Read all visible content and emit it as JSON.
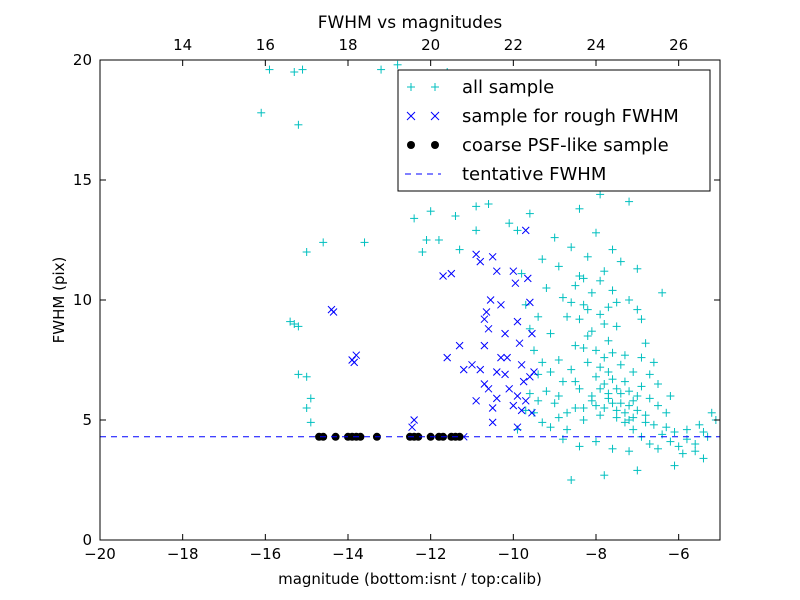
{
  "chart_data": {
    "type": "scatter",
    "title": "FWHM vs magnitudes",
    "xlabel": "magnitude (bottom:isnt / top:calib)",
    "ylabel": "FWHM (pix)",
    "xlim": [
      -20,
      -5
    ],
    "ylim": [
      0,
      20
    ],
    "x_ticks": [
      -20,
      -18,
      -16,
      -14,
      -12,
      -10,
      -8,
      -6
    ],
    "x_tick_labels": [
      "−20",
      "−18",
      "−16",
      "−14",
      "−12",
      "−10",
      "−8",
      "−6"
    ],
    "y_ticks": [
      0,
      5,
      10,
      15,
      20
    ],
    "y_tick_labels": [
      "0",
      "5",
      "10",
      "15",
      "20"
    ],
    "top_axis": {
      "label_note": "calib magnitude = isnt magnitude + 32.0",
      "offset": 32.0,
      "ticks": [
        14,
        16,
        18,
        20,
        22,
        24,
        26
      ],
      "tick_labels": [
        "14",
        "16",
        "18",
        "20",
        "22",
        "24",
        "26"
      ]
    },
    "grid": false,
    "legend_position": "top-right",
    "colors": {
      "all": "#00bfbf",
      "rough": "#0000ff",
      "coarse": "#000000",
      "tentative": "#0000ff"
    },
    "tentative_fwhm": 4.3,
    "series": [
      {
        "name": "all sample",
        "marker": "plus",
        "points": [
          [
            -16.1,
            17.8
          ],
          [
            -15.2,
            17.3
          ],
          [
            -15.9,
            19.6
          ],
          [
            -15.3,
            19.5
          ],
          [
            -15.1,
            19.6
          ],
          [
            -15.0,
            12.0
          ],
          [
            -14.6,
            12.4
          ],
          [
            -15.4,
            9.1
          ],
          [
            -15.3,
            9.0
          ],
          [
            -15.2,
            8.9
          ],
          [
            -15.2,
            6.9
          ],
          [
            -15.0,
            6.8
          ],
          [
            -14.9,
            5.9
          ],
          [
            -15.0,
            5.5
          ],
          [
            -14.9,
            4.9
          ],
          [
            -13.6,
            12.4
          ],
          [
            -12.4,
            13.4
          ],
          [
            -12.0,
            13.7
          ],
          [
            -12.2,
            12.0
          ],
          [
            -11.8,
            12.5
          ],
          [
            -11.4,
            13.5
          ],
          [
            -10.9,
            13.9
          ],
          [
            -10.6,
            14.0
          ],
          [
            -9.9,
            16.0
          ],
          [
            -9.5,
            15.4
          ],
          [
            -9.2,
            15.7
          ],
          [
            -8.6,
            16.4
          ],
          [
            -8.8,
            17.0
          ],
          [
            -7.6,
            16.1
          ],
          [
            -7.4,
            15.3
          ],
          [
            -7.9,
            14.4
          ],
          [
            -7.2,
            14.1
          ],
          [
            -8.4,
            13.8
          ],
          [
            -9.6,
            13.6
          ],
          [
            -9.9,
            12.9
          ],
          [
            -10.1,
            13.2
          ],
          [
            -10.9,
            12.9
          ],
          [
            -11.3,
            12.1
          ],
          [
            -12.1,
            12.5
          ],
          [
            -13.2,
            19.6
          ],
          [
            -12.8,
            19.8
          ],
          [
            -11.6,
            19.5
          ],
          [
            -10.3,
            19.1
          ],
          [
            -10.6,
            18.2
          ],
          [
            -8.6,
            2.5
          ],
          [
            -7.8,
            2.7
          ],
          [
            -7.0,
            2.9
          ],
          [
            -6.1,
            3.1
          ],
          [
            -5.4,
            3.4
          ],
          [
            -6.4,
            10.3
          ],
          [
            -7.0,
            11.3
          ],
          [
            -7.6,
            12.1
          ],
          [
            -6.9,
            9.2
          ],
          [
            -5.2,
            5.3
          ],
          [
            -5.4,
            4.5
          ],
          [
            -6.5,
            6.5
          ],
          [
            -6.3,
            5.3
          ],
          [
            -6.8,
            4.9
          ],
          [
            -5.8,
            4.6
          ],
          [
            -5.6,
            3.7
          ],
          [
            -9.8,
            11.1
          ],
          [
            -9.7,
            9.8
          ],
          [
            -9.6,
            8.8
          ],
          [
            -9.5,
            7.9
          ],
          [
            -9.4,
            9.3
          ],
          [
            -9.3,
            11.7
          ],
          [
            -9.2,
            10.5
          ],
          [
            -9.0,
            12.6
          ],
          [
            -8.9,
            11.4
          ],
          [
            -8.8,
            10.1
          ],
          [
            -8.6,
            12.2
          ],
          [
            -8.4,
            11.0
          ],
          [
            -8.2,
            11.8
          ],
          [
            -8.0,
            12.8
          ],
          [
            -7.8,
            11.2
          ],
          [
            -7.6,
            10.4
          ],
          [
            -7.4,
            11.6
          ],
          [
            -7.2,
            10.0
          ],
          [
            -7.0,
            9.6
          ],
          [
            -6.8,
            8.2
          ],
          [
            -6.6,
            7.4
          ],
          [
            -9.1,
            8.6
          ],
          [
            -8.9,
            7.5
          ],
          [
            -8.7,
            9.3
          ],
          [
            -8.5,
            8.1
          ],
          [
            -8.3,
            9.8
          ],
          [
            -8.1,
            8.7
          ],
          [
            -7.9,
            9.4
          ],
          [
            -7.7,
            8.3
          ],
          [
            -7.5,
            8.9
          ],
          [
            -7.3,
            7.7
          ],
          [
            -7.1,
            7.0
          ],
          [
            -6.9,
            6.4
          ],
          [
            -6.7,
            5.9
          ],
          [
            -9.4,
            6.9
          ],
          [
            -9.2,
            6.2
          ],
          [
            -9.0,
            5.7
          ],
          [
            -8.8,
            6.6
          ],
          [
            -8.6,
            7.1
          ],
          [
            -8.4,
            6.3
          ],
          [
            -8.2,
            7.4
          ],
          [
            -8.0,
            6.8
          ],
          [
            -7.8,
            7.6
          ],
          [
            -7.6,
            6.7
          ],
          [
            -7.4,
            6.1
          ],
          [
            -7.2,
            5.6
          ],
          [
            -7.0,
            6.0
          ],
          [
            -6.8,
            5.2
          ],
          [
            -6.6,
            4.8
          ],
          [
            -6.4,
            4.4
          ],
          [
            -6.2,
            4.1
          ],
          [
            -6.0,
            3.9
          ],
          [
            -5.8,
            4.2
          ],
          [
            -5.6,
            4.0
          ],
          [
            -9.5,
            5.3
          ],
          [
            -9.3,
            4.9
          ],
          [
            -9.1,
            4.7
          ],
          [
            -8.9,
            5.1
          ],
          [
            -8.7,
            4.6
          ],
          [
            -8.5,
            5.5
          ],
          [
            -8.3,
            5.0
          ],
          [
            -8.1,
            5.8
          ],
          [
            -7.9,
            5.2
          ],
          [
            -7.7,
            5.9
          ],
          [
            -7.5,
            5.4
          ],
          [
            -7.3,
            4.9
          ],
          [
            -7.1,
            4.6
          ],
          [
            -6.9,
            4.3
          ],
          [
            -6.7,
            4.0
          ],
          [
            -6.5,
            3.8
          ],
          [
            -8.8,
            4.2
          ],
          [
            -8.4,
            3.9
          ],
          [
            -8.0,
            4.1
          ],
          [
            -7.6,
            3.8
          ],
          [
            -7.2,
            3.7
          ],
          [
            -8.3,
            8.0
          ],
          [
            -8.2,
            8.5
          ],
          [
            -8.0,
            7.9
          ],
          [
            -7.9,
            7.2
          ],
          [
            -7.8,
            6.5
          ],
          [
            -7.7,
            7.0
          ],
          [
            -7.6,
            7.8
          ],
          [
            -7.5,
            6.3
          ],
          [
            -7.4,
            7.3
          ],
          [
            -7.3,
            6.6
          ],
          [
            -7.2,
            6.2
          ],
          [
            -7.1,
            5.8
          ],
          [
            -7.0,
            5.4
          ],
          [
            -8.1,
            6.0
          ],
          [
            -8.0,
            5.6
          ],
          [
            -7.9,
            6.3
          ],
          [
            -7.8,
            5.5
          ],
          [
            -7.7,
            6.1
          ],
          [
            -7.6,
            5.7
          ],
          [
            -7.5,
            5.1
          ],
          [
            -7.4,
            5.7
          ],
          [
            -7.3,
            5.3
          ],
          [
            -7.2,
            5.0
          ],
          [
            -7.1,
            5.1
          ],
          [
            -8.6,
            9.9
          ],
          [
            -8.5,
            10.6
          ],
          [
            -8.4,
            9.2
          ],
          [
            -8.3,
            10.9
          ],
          [
            -8.2,
            9.6
          ],
          [
            -8.1,
            10.3
          ],
          [
            -7.9,
            10.8
          ],
          [
            -7.8,
            9.0
          ],
          [
            -7.7,
            9.7
          ],
          [
            -7.5,
            9.9
          ],
          [
            -9.9,
            4.6
          ],
          [
            -9.7,
            5.4
          ],
          [
            -9.6,
            6.1
          ],
          [
            -9.4,
            5.8
          ],
          [
            -9.3,
            7.4
          ],
          [
            -9.1,
            7.0
          ],
          [
            -8.9,
            6.0
          ],
          [
            -8.7,
            5.3
          ],
          [
            -8.5,
            6.6
          ],
          [
            -8.3,
            5.5
          ],
          [
            -6.9,
            7.6
          ],
          [
            -6.7,
            6.9
          ],
          [
            -6.5,
            5.6
          ],
          [
            -6.3,
            4.7
          ],
          [
            -6.1,
            4.5
          ],
          [
            -5.9,
            3.6
          ],
          [
            -5.5,
            4.8
          ],
          [
            -5.3,
            4.3
          ],
          [
            -5.1,
            5.0
          ],
          [
            -6.2,
            6.0
          ]
        ]
      },
      {
        "name": "sample for rough FWHM",
        "marker": "x",
        "points": [
          [
            -14.4,
            9.6
          ],
          [
            -14.35,
            9.5
          ],
          [
            -13.9,
            7.5
          ],
          [
            -13.8,
            7.7
          ],
          [
            -13.85,
            7.4
          ],
          [
            -12.4,
            5.0
          ],
          [
            -12.45,
            4.7
          ],
          [
            -11.6,
            7.6
          ],
          [
            -11.7,
            11.0
          ],
          [
            -11.5,
            11.1
          ],
          [
            -11.3,
            8.1
          ],
          [
            -11.2,
            7.1
          ],
          [
            -10.9,
            11.9
          ],
          [
            -10.8,
            11.6
          ],
          [
            -10.7,
            9.2
          ],
          [
            -10.6,
            8.8
          ],
          [
            -10.65,
            9.5
          ],
          [
            -10.55,
            10.0
          ],
          [
            -10.5,
            11.8
          ],
          [
            -10.4,
            11.2
          ],
          [
            -10.3,
            9.8
          ],
          [
            -10.2,
            8.6
          ],
          [
            -10.15,
            7.6
          ],
          [
            -10.0,
            11.2
          ],
          [
            -9.95,
            10.7
          ],
          [
            -9.9,
            9.1
          ],
          [
            -9.85,
            8.2
          ],
          [
            -9.8,
            7.3
          ],
          [
            -9.75,
            6.6
          ],
          [
            -9.7,
            12.9
          ],
          [
            -9.65,
            10.9
          ],
          [
            -9.6,
            9.9
          ],
          [
            -9.55,
            8.6
          ],
          [
            -9.5,
            7.0
          ],
          [
            -10.8,
            7.1
          ],
          [
            -10.7,
            6.5
          ],
          [
            -10.6,
            6.3
          ],
          [
            -10.5,
            5.5
          ],
          [
            -10.4,
            5.9
          ],
          [
            -10.3,
            7.6
          ],
          [
            -10.2,
            6.9
          ],
          [
            -10.1,
            6.3
          ],
          [
            -10.0,
            5.6
          ],
          [
            -9.9,
            6.0
          ],
          [
            -9.8,
            5.4
          ],
          [
            -10.9,
            5.8
          ],
          [
            -11.0,
            7.3
          ],
          [
            -10.7,
            8.1
          ],
          [
            -10.4,
            7.0
          ],
          [
            -9.7,
            5.8
          ],
          [
            -9.6,
            6.8
          ],
          [
            -9.55,
            5.3
          ],
          [
            -10.5,
            4.9
          ],
          [
            -11.2,
            4.3
          ],
          [
            -9.9,
            4.7
          ]
        ]
      },
      {
        "name": "coarse PSF-like sample",
        "marker": "circle",
        "points": [
          [
            -14.7,
            4.3
          ],
          [
            -14.6,
            4.3
          ],
          [
            -14.3,
            4.3
          ],
          [
            -14.0,
            4.3
          ],
          [
            -13.9,
            4.3
          ],
          [
            -13.8,
            4.3
          ],
          [
            -13.7,
            4.3
          ],
          [
            -13.3,
            4.3
          ],
          [
            -12.5,
            4.3
          ],
          [
            -12.4,
            4.3
          ],
          [
            -12.3,
            4.3
          ],
          [
            -12.0,
            4.3
          ],
          [
            -11.8,
            4.3
          ],
          [
            -11.7,
            4.3
          ],
          [
            -11.5,
            4.3
          ],
          [
            -11.4,
            4.3
          ],
          [
            -11.3,
            4.3
          ]
        ]
      }
    ]
  },
  "legend": {
    "items": [
      {
        "label": "all sample",
        "marker": "plus",
        "color": "#00bfbf"
      },
      {
        "label": "sample for rough FWHM",
        "marker": "x",
        "color": "#0000ff"
      },
      {
        "label": "coarse PSF-like sample",
        "marker": "circle",
        "color": "#000000"
      },
      {
        "label": "tentative FWHM",
        "marker": "dash",
        "color": "#0000ff"
      }
    ]
  }
}
